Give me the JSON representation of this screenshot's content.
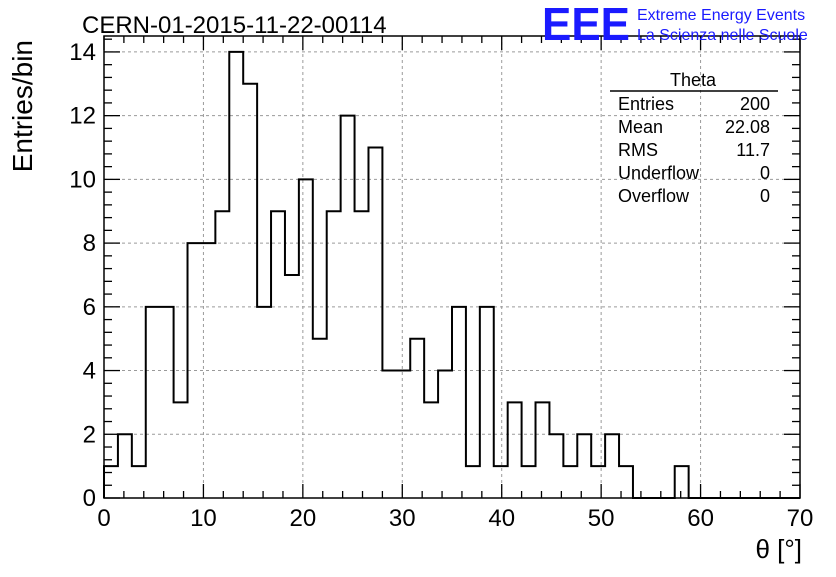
{
  "header": {
    "run_title": "CERN-01-2015-11-22-00114",
    "logo_text": "EEE",
    "logo_line1": "Extreme Energy Events",
    "logo_line2": "La Scienza nelle Scuole",
    "logo_color": "#1a1aff"
  },
  "stats_box": {
    "title": "Theta",
    "rows": [
      {
        "label": "Entries",
        "value": "200"
      },
      {
        "label": "Mean",
        "value": "22.08"
      },
      {
        "label": "RMS",
        "value": "11.7"
      },
      {
        "label": "Underflow",
        "value": "0"
      },
      {
        "label": "Overflow",
        "value": "0"
      }
    ]
  },
  "chart_data": {
    "type": "bar",
    "style": "step-histogram",
    "xlabel": "θ [°]",
    "ylabel": "Entries/bin",
    "xlim": [
      0,
      70
    ],
    "ylim": [
      0,
      14.5
    ],
    "x_ticks": [
      0,
      10,
      20,
      30,
      40,
      50,
      60,
      70
    ],
    "y_ticks": [
      0,
      2,
      4,
      6,
      8,
      10,
      12,
      14
    ],
    "grid": true,
    "bin_width": 1.4,
    "bin_edges_start": 0,
    "values": [
      1,
      2,
      1,
      6,
      6,
      3,
      8,
      8,
      9,
      14,
      13,
      6,
      9,
      7,
      10,
      5,
      9,
      12,
      9,
      11,
      4,
      4,
      5,
      3,
      4,
      6,
      1,
      6,
      1,
      3,
      1,
      3,
      2,
      1,
      2,
      1,
      2,
      1,
      0,
      0,
      0,
      1,
      0,
      0,
      0,
      0,
      0,
      0,
      0,
      0
    ],
    "line_color": "#000000"
  }
}
